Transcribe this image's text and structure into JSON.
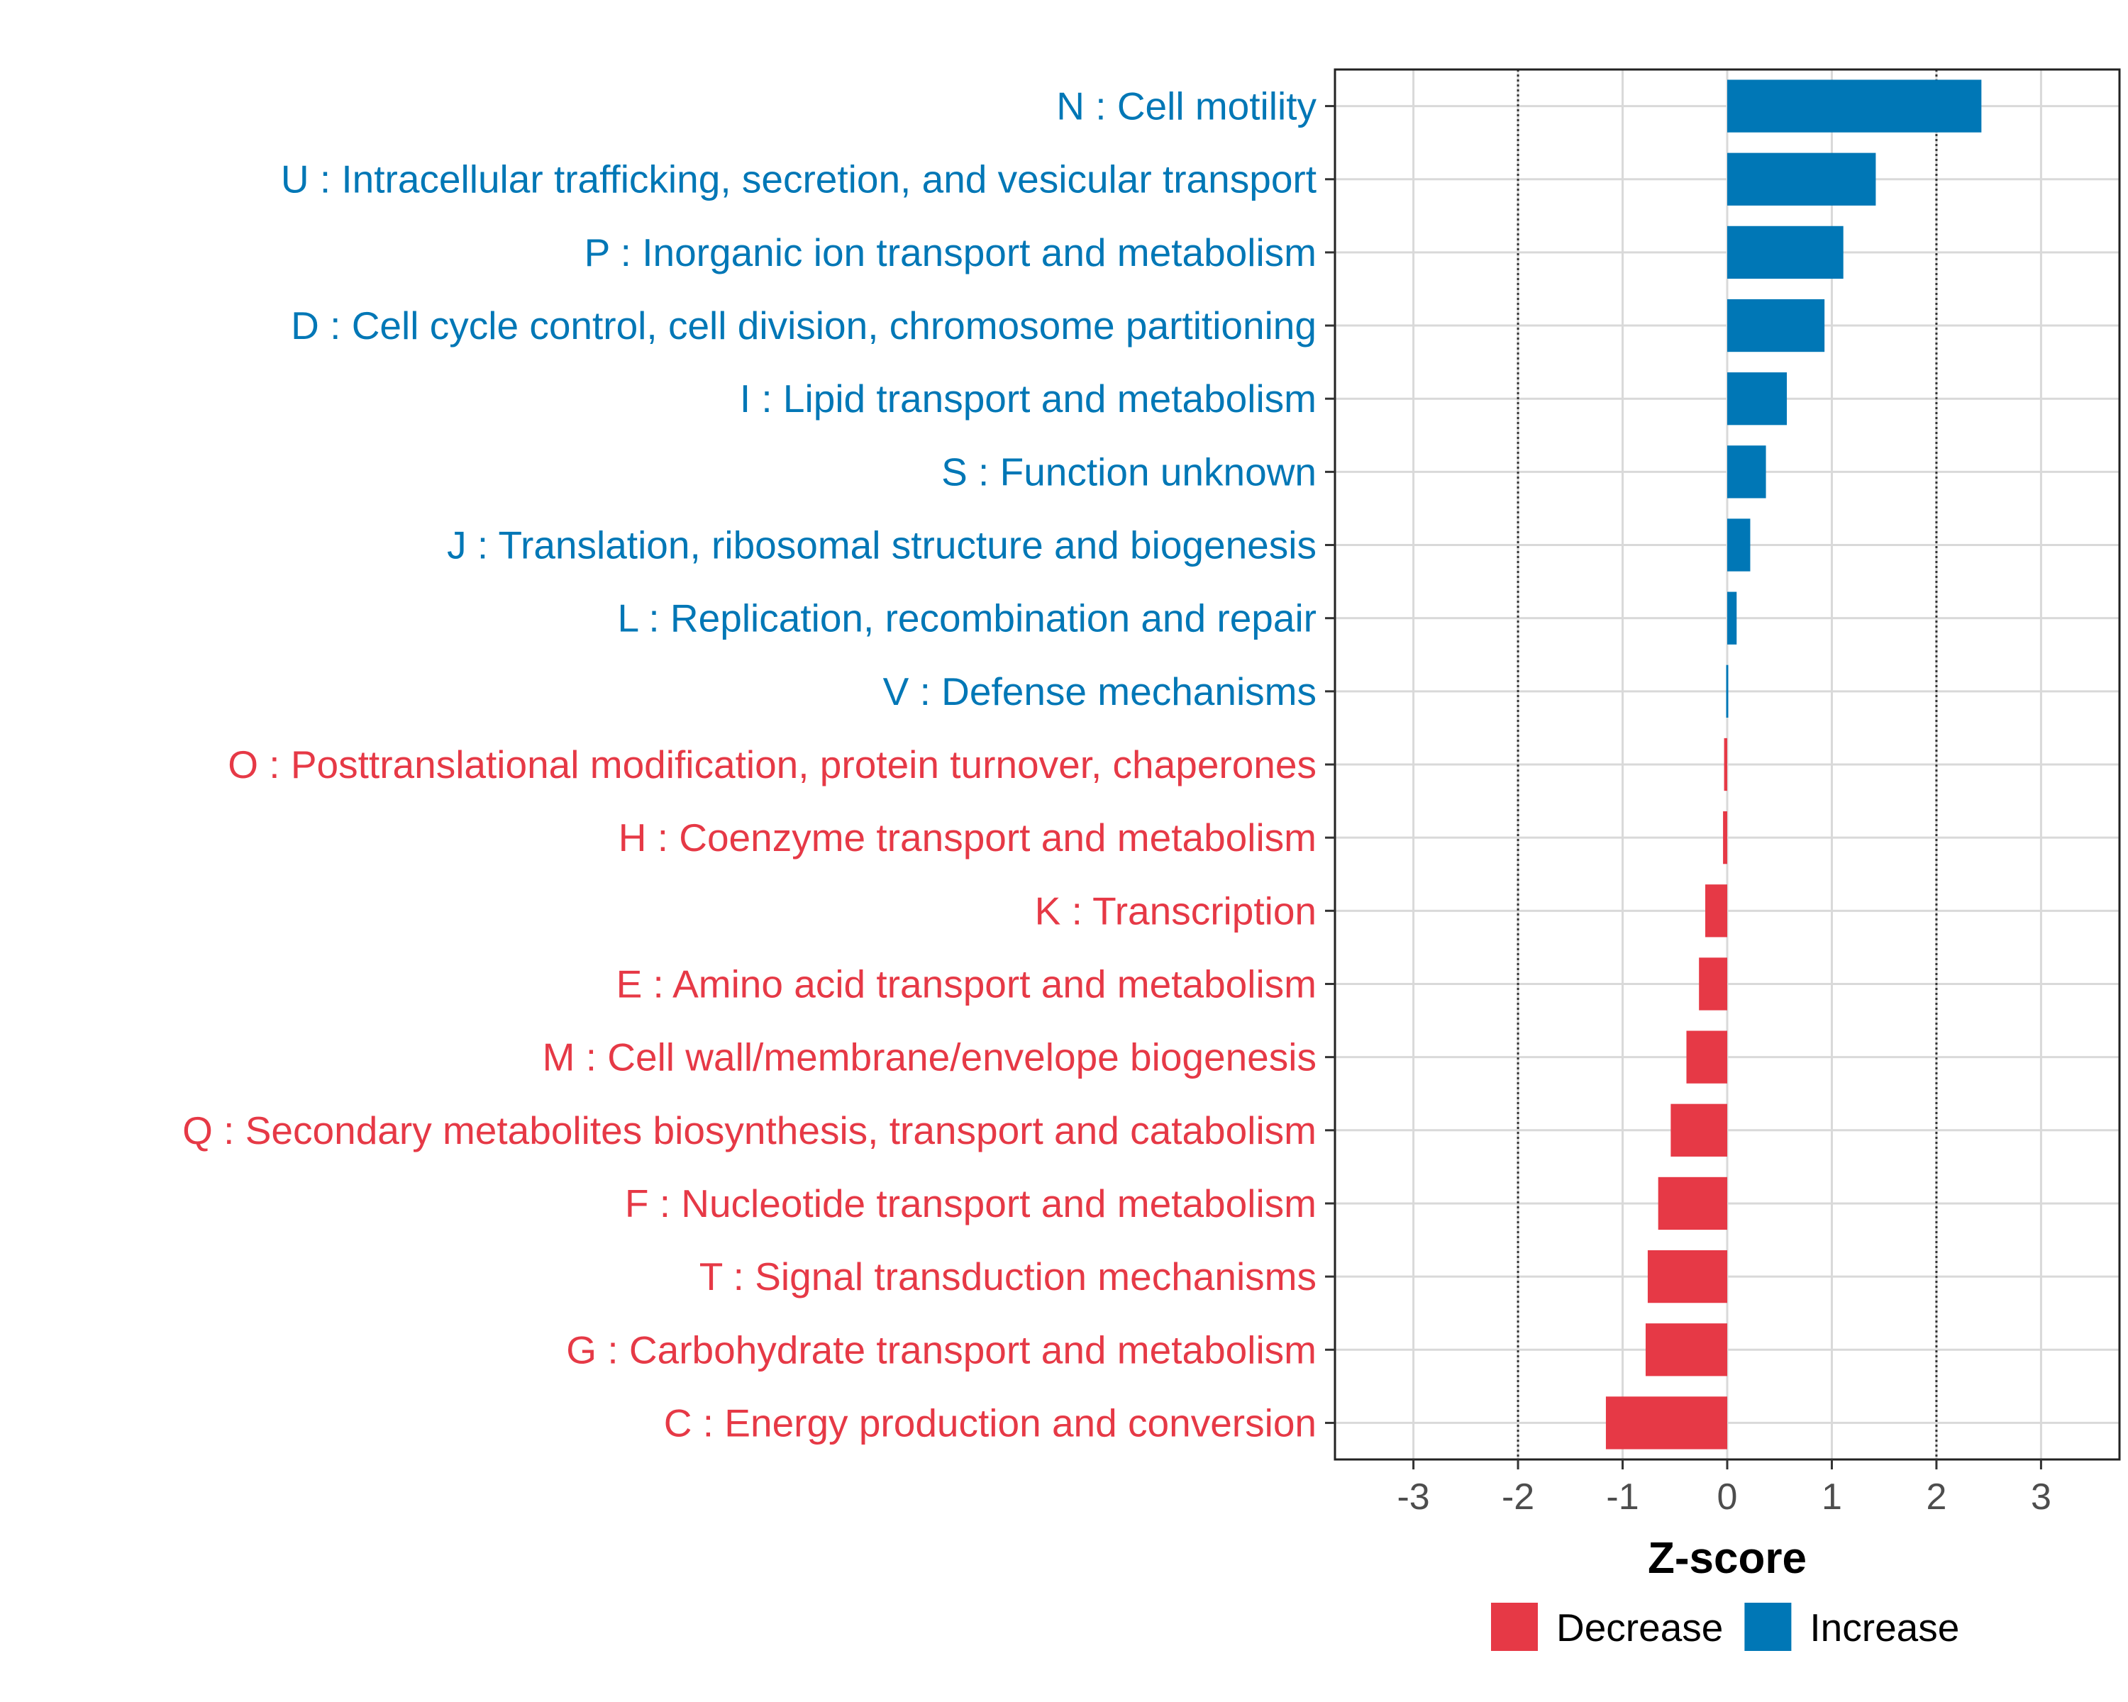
{
  "chart_data": {
    "type": "bar",
    "orientation": "horizontal",
    "title": "",
    "xlabel": "Z-score",
    "ylabel": "",
    "xlim": [
      -3.75,
      3.75
    ],
    "xticks": [
      -3,
      -2,
      -1,
      0,
      1,
      2,
      3
    ],
    "reference_lines": [
      -2,
      2
    ],
    "grid": true,
    "legend_position": "bottom",
    "colors": {
      "Decrease": "#E63946",
      "Increase": "#0077B6"
    },
    "legend": [
      {
        "label": "Decrease",
        "color": "#E63946"
      },
      {
        "label": "Increase",
        "color": "#0077B6"
      }
    ],
    "categories": [
      "N : Cell motility",
      "U : Intracellular trafficking, secretion, and vesicular transport",
      "P : Inorganic ion transport and metabolism",
      "D : Cell cycle control, cell division, chromosome partitioning",
      "I : Lipid transport and metabolism",
      "S : Function unknown",
      "J : Translation, ribosomal structure and biogenesis",
      "L : Replication, recombination and repair",
      "V : Defense mechanisms",
      "O : Posttranslational modification, protein turnover, chaperones",
      "H : Coenzyme transport and metabolism",
      "K : Transcription",
      "E : Amino acid transport and metabolism",
      "M : Cell wall/membrane/envelope biogenesis",
      "Q : Secondary metabolites biosynthesis, transport and catabolism",
      "F : Nucleotide transport and metabolism",
      "T : Signal transduction mechanisms",
      "G : Carbohydrate transport and metabolism",
      "C : Energy production and conversion"
    ],
    "values": [
      2.43,
      1.42,
      1.11,
      0.93,
      0.57,
      0.37,
      0.22,
      0.09,
      0.02,
      -0.03,
      -0.04,
      -0.21,
      -0.27,
      -0.39,
      -0.54,
      -0.66,
      -0.76,
      -0.78,
      -1.16
    ],
    "groups": [
      "Increase",
      "Increase",
      "Increase",
      "Increase",
      "Increase",
      "Increase",
      "Increase",
      "Increase",
      "Increase",
      "Decrease",
      "Decrease",
      "Decrease",
      "Decrease",
      "Decrease",
      "Decrease",
      "Decrease",
      "Decrease",
      "Decrease",
      "Decrease"
    ]
  }
}
